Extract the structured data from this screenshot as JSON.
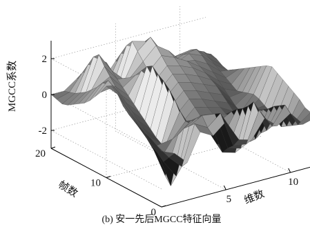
{
  "chart_data": {
    "type": "surface",
    "zlabel": "MGCC系数",
    "xlabel": "维数",
    "ylabel": "帧数",
    "caption": "(b) 安一先后MGCC特征向量",
    "xlim": [
      0,
      12
    ],
    "ylim": [
      0,
      20
    ],
    "zlim": [
      -3,
      3
    ],
    "xticks": [
      "5",
      "10"
    ],
    "yticks": [
      "0",
      "10",
      "20"
    ],
    "zticks": [
      "-2",
      "0",
      "2"
    ],
    "grid": true,
    "colormap": "gray",
    "z_grid": [
      [
        0.1,
        -0.2,
        -0.9,
        0.6,
        0.2,
        0.8,
        -0.4,
        -0.6,
        0.4,
        -0.2,
        0.3,
        -0.5,
        -0.3
      ],
      [
        0.3,
        -0.6,
        -1.3,
        0.9,
        0.5,
        1.1,
        -0.9,
        -1.0,
        0.7,
        -0.4,
        0.6,
        -0.7,
        -0.2
      ],
      [
        0.5,
        -1.0,
        -2.0,
        0.6,
        1.0,
        0.9,
        -1.2,
        -1.4,
        1.0,
        -0.8,
        0.4,
        -0.9,
        -0.1
      ],
      [
        0.6,
        -0.7,
        -2.7,
        0.3,
        0.7,
        0.4,
        -1.6,
        -1.8,
        0.6,
        -1.1,
        0.2,
        -1.1,
        0.2
      ],
      [
        0.8,
        -0.5,
        -2.3,
        -0.2,
        0.4,
        0.0,
        -1.3,
        -1.5,
        0.3,
        -1.6,
        -0.1,
        -1.3,
        0.4
      ],
      [
        1.0,
        -0.2,
        -1.6,
        -0.6,
        0.2,
        -0.4,
        -0.9,
        -1.1,
        0.1,
        -1.9,
        -0.3,
        -1.0,
        0.6
      ],
      [
        1.2,
        0.1,
        -1.0,
        -0.9,
        0.6,
        -0.7,
        -0.5,
        -0.6,
        -0.2,
        -1.4,
        -0.5,
        -0.8,
        0.8
      ],
      [
        1.5,
        0.4,
        -0.6,
        -1.2,
        1.1,
        -0.9,
        -0.2,
        -0.3,
        -0.5,
        -1.0,
        -0.7,
        -0.6,
        1.0
      ],
      [
        2.0,
        0.7,
        -0.3,
        -1.0,
        1.5,
        -0.6,
        0.1,
        -0.1,
        -0.3,
        -0.7,
        -0.9,
        -0.4,
        1.2
      ],
      [
        2.3,
        1.0,
        0.0,
        -0.7,
        1.8,
        -0.3,
        0.4,
        0.2,
        -0.1,
        -0.4,
        -1.1,
        -0.3,
        1.1
      ],
      [
        2.1,
        1.4,
        0.3,
        -0.4,
        2.0,
        0.0,
        0.7,
        0.5,
        0.2,
        -0.1,
        -0.9,
        -0.4,
        0.9
      ],
      [
        1.6,
        1.7,
        0.6,
        -0.1,
        2.3,
        0.3,
        1.0,
        0.8,
        0.5,
        0.2,
        -0.6,
        -0.5,
        0.7
      ],
      [
        1.2,
        1.9,
        0.9,
        0.2,
        2.1,
        0.6,
        1.3,
        1.1,
        0.8,
        0.4,
        -0.3,
        -0.6,
        0.5
      ],
      [
        0.8,
        1.6,
        1.2,
        0.5,
        1.7,
        0.9,
        1.6,
        1.4,
        1.1,
        0.6,
        0.0,
        -0.4,
        0.3
      ],
      [
        0.5,
        1.2,
        1.6,
        0.8,
        1.3,
        1.3,
        2.0,
        1.7,
        1.3,
        0.8,
        0.3,
        -0.2,
        0.1
      ],
      [
        0.3,
        0.9,
        2.0,
        1.1,
        1.0,
        1.7,
        2.4,
        1.9,
        1.1,
        1.0,
        0.6,
        0.0,
        -0.1
      ],
      [
        0.1,
        0.6,
        2.5,
        1.4,
        0.7,
        2.1,
        2.7,
        1.6,
        0.9,
        1.2,
        0.9,
        0.2,
        -0.3
      ],
      [
        -0.1,
        0.4,
        2.2,
        1.7,
        0.4,
        2.5,
        2.3,
        1.3,
        0.7,
        1.0,
        1.1,
        0.4,
        -0.2
      ],
      [
        -0.2,
        0.2,
        1.6,
        1.4,
        0.2,
        2.1,
        1.8,
        1.0,
        0.5,
        0.8,
        0.9,
        0.6,
        0.0
      ],
      [
        -0.1,
        0.1,
        1.0,
        1.0,
        0.1,
        1.5,
        1.2,
        0.7,
        0.3,
        0.5,
        0.6,
        0.4,
        0.1
      ],
      [
        0.0,
        0.0,
        0.5,
        0.6,
        0.0,
        0.9,
        0.7,
        0.4,
        0.1,
        0.2,
        0.3,
        0.2,
        0.0
      ]
    ]
  }
}
